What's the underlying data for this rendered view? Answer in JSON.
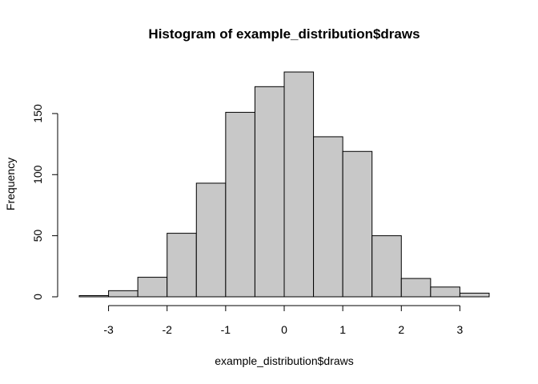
{
  "chart_data": {
    "type": "bar",
    "title": "Histogram of example_distribution$draws",
    "xlabel": "example_distribution$draws",
    "ylabel": "Frequency",
    "bins": [
      {
        "start": -3.5,
        "end": -3.0,
        "count": 1
      },
      {
        "start": -3.0,
        "end": -2.5,
        "count": 5
      },
      {
        "start": -2.5,
        "end": -2.0,
        "count": 16
      },
      {
        "start": -2.0,
        "end": -1.5,
        "count": 52
      },
      {
        "start": -1.5,
        "end": -1.0,
        "count": 93
      },
      {
        "start": -1.0,
        "end": -0.5,
        "count": 151
      },
      {
        "start": -0.5,
        "end": 0.0,
        "count": 172
      },
      {
        "start": 0.0,
        "end": 0.5,
        "count": 184
      },
      {
        "start": 0.5,
        "end": 1.0,
        "count": 131
      },
      {
        "start": 1.0,
        "end": 1.5,
        "count": 119
      },
      {
        "start": 1.5,
        "end": 2.0,
        "count": 50
      },
      {
        "start": 2.0,
        "end": 2.5,
        "count": 15
      },
      {
        "start": 2.5,
        "end": 3.0,
        "count": 8
      },
      {
        "start": 3.0,
        "end": 3.5,
        "count": 3
      }
    ],
    "xticks": [
      -3,
      -2,
      -1,
      0,
      1,
      2,
      3
    ],
    "xtick_labels": [
      "-3",
      "-2",
      "-1",
      "0",
      "1",
      "2",
      "3"
    ],
    "yticks": [
      0,
      50,
      100,
      150
    ],
    "ytick_labels": [
      "0",
      "50",
      "100",
      "150"
    ],
    "xlim": [
      -3.5,
      3.5
    ],
    "ylim": [
      0,
      184
    ],
    "bar_color": "#c8c8c8",
    "edge_color": "#000000",
    "grid": false,
    "legend": "none"
  }
}
